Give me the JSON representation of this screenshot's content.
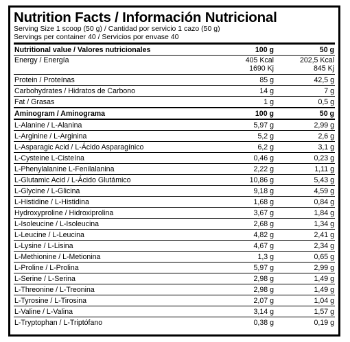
{
  "header": {
    "title": "Nutrition Facts / Información Nutricional",
    "serving_size": "Serving Size 1 scoop (50 g) / Cantidad por servicio 1 cazo (50 g)",
    "servings_per_container": "Servings per container 40 / Servicios por envase 40"
  },
  "nutrition": {
    "heading": {
      "label": "Nutritional value / Valores nutricionales",
      "col1": "100 g",
      "col2": "50 g"
    },
    "energy": {
      "label": "Energy / Energía",
      "kcal_100": "405 Kcal",
      "kj_100": "1690 Kj",
      "kcal_50": "202,5 Kcal",
      "kj_50": "845 Kj"
    },
    "rows": [
      {
        "label": "Protein / Proteínas",
        "v100": "85 g",
        "v50": "42,5 g"
      },
      {
        "label": "Carbohydrates / Hidratos de Carbono",
        "v100": "14 g",
        "v50": "7 g"
      },
      {
        "label": "Fat / Grasas",
        "v100": "1 g",
        "v50": "0,5 g"
      }
    ]
  },
  "aminogram": {
    "heading": {
      "label": "Aminogram / Aminograma",
      "col1": "100 g",
      "col2": "50 g"
    },
    "rows": [
      {
        "label": "L-Alanine / L-Alanina",
        "v100": "5,97 g",
        "v50": "2,99 g"
      },
      {
        "label": "L-Arginine / L-Arginina",
        "v100": "5,2 g",
        "v50": "2,6 g"
      },
      {
        "label": "L-Asparagic Acid / L-Ácido Asparagínico",
        "v100": "6,2 g",
        "v50": "3,1 g"
      },
      {
        "label": "L-Cysteine L-Cisteína",
        "v100": "0,46 g",
        "v50": "0,23 g"
      },
      {
        "label": "L-Phenylalanine L-Fenilalanina",
        "v100": "2,22 g",
        "v50": "1,11 g"
      },
      {
        "label": "L-Glutamic Acid / L-Ácido Glutámico",
        "v100": "10,86 g",
        "v50": "5,43 g"
      },
      {
        "label": "L-Glycine / L-Glicina",
        "v100": "9,18 g",
        "v50": "4,59 g"
      },
      {
        "label": "L-Histidine / L-Histidina",
        "v100": "1,68 g",
        "v50": "0,84 g"
      },
      {
        "label": "Hydroxyproline / Hidroxiprolina",
        "v100": "3,67 g",
        "v50": "1,84 g"
      },
      {
        "label": "L-Isoleucine / L-Isoleucina",
        "v100": "2,68 g",
        "v50": "1,34 g"
      },
      {
        "label": "L-Leucine / L-Leucina",
        "v100": "4,82 g",
        "v50": "2,41 g"
      },
      {
        "label": "L-Lysine / L-Lisina",
        "v100": "4,67 g",
        "v50": "2,34 g"
      },
      {
        "label": "L-Methionine / L-Metionina",
        "v100": "1,3 g",
        "v50": "0,65 g"
      },
      {
        "label": "L-Proline / L-Prolina",
        "v100": "5,97 g",
        "v50": "2,99 g"
      },
      {
        "label": "L-Serine / L-Serina",
        "v100": "2,98 g",
        "v50": "1,49 g"
      },
      {
        "label": "L-Threonine / L-Treonina",
        "v100": "2,98 g",
        "v50": "1,49 g"
      },
      {
        "label": "L-Tyrosine / L-Tirosina",
        "v100": "2,07 g",
        "v50": "1,04 g"
      },
      {
        "label": "L-Valine / L-Valina",
        "v100": "3,14 g",
        "v50": "1,57 g"
      },
      {
        "label": "L-Tryptophan / L-Triptófano",
        "v100": "0,38 g",
        "v50": "0,19 g"
      }
    ]
  }
}
